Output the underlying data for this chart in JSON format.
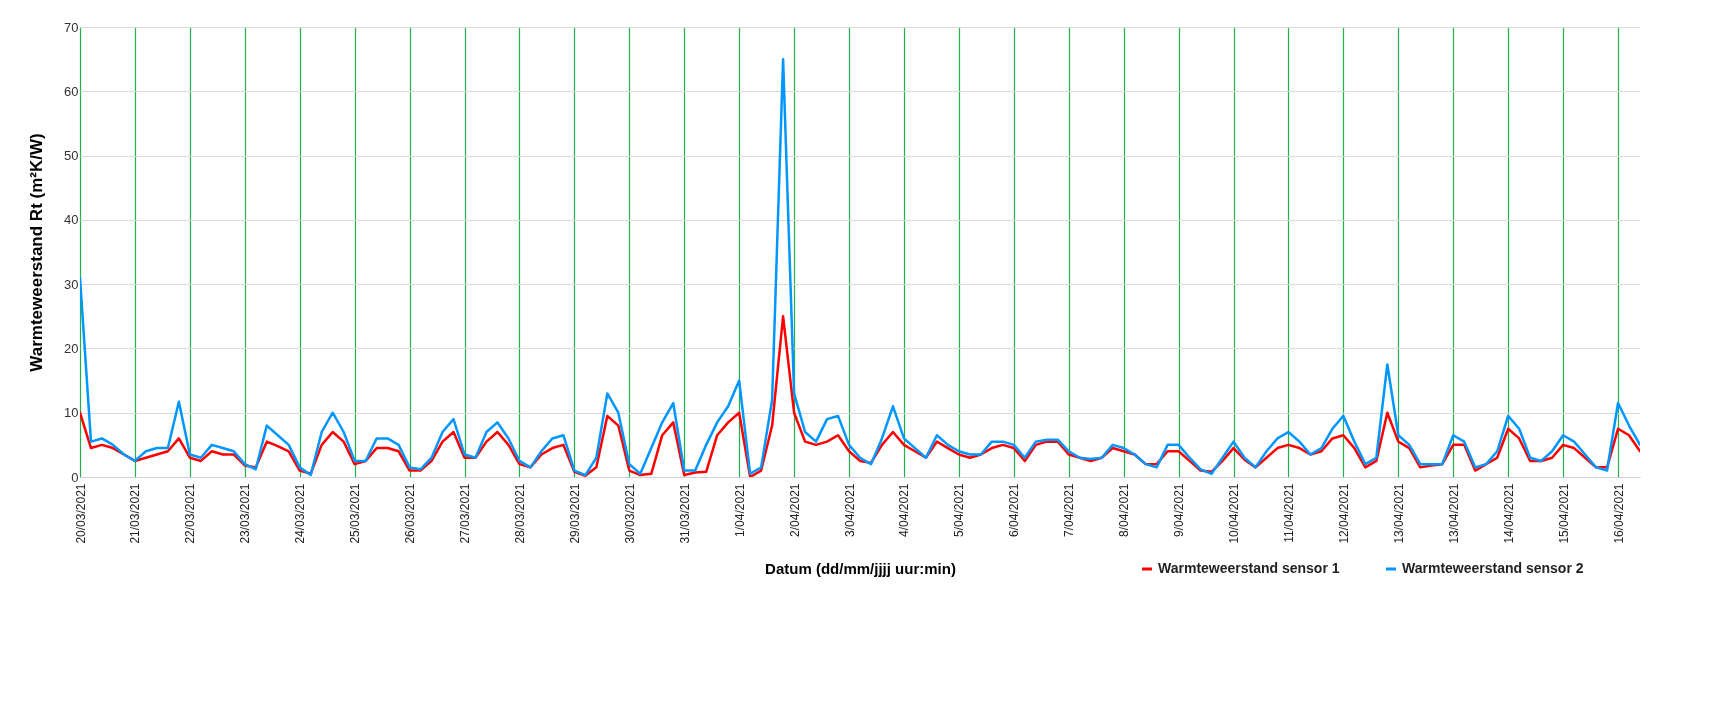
{
  "chart_data": {
    "type": "line",
    "xlabel": "Datum (dd/mm/jjjj uur:min)",
    "ylabel": "Warmteweerstand Rt (m²K/W)",
    "categories": [
      "20/03/2021",
      null,
      null,
      null,
      null,
      "21/03/2021",
      null,
      null,
      null,
      null,
      "22/03/2021",
      null,
      null,
      null,
      null,
      "23/03/2021",
      null,
      null,
      null,
      null,
      "24/03/2021",
      null,
      null,
      null,
      null,
      "25/03/2021",
      null,
      null,
      null,
      null,
      "26/03/2021",
      null,
      null,
      null,
      null,
      "27/03/2021",
      null,
      null,
      null,
      null,
      "28/03/2021",
      null,
      null,
      null,
      null,
      "29/03/2021",
      null,
      null,
      null,
      null,
      "30/03/2021",
      null,
      null,
      null,
      null,
      "31/03/2021",
      null,
      null,
      null,
      null,
      "1/04/2021",
      null,
      null,
      null,
      null,
      "2/04/2021",
      null,
      null,
      null,
      null,
      "3/04/2021",
      null,
      null,
      null,
      null,
      "4/04/2021",
      null,
      null,
      null,
      null,
      "5/04/2021",
      null,
      null,
      null,
      null,
      "6/04/2021",
      null,
      null,
      null,
      null,
      "7/04/2021",
      null,
      null,
      null,
      null,
      "8/04/2021",
      null,
      null,
      null,
      null,
      "9/04/2021",
      null,
      null,
      null,
      null,
      "10/04/2021",
      null,
      null,
      null,
      null,
      "11/04/2021",
      null,
      null,
      null,
      null,
      "12/04/2021",
      null,
      null,
      null,
      null,
      "13/04/2021",
      null,
      null,
      null,
      null,
      "13/04/2021",
      null,
      null,
      null,
      null,
      "14/04/2021",
      null,
      null,
      null,
      null,
      "15/04/2021",
      null,
      null,
      null,
      null,
      "16/04/2021",
      null,
      null
    ],
    "series": [
      {
        "name": "Warmteweerstand sensor 1",
        "color": "#ff0000",
        "values": [
          10,
          4.5,
          5,
          4.5,
          3.5,
          2.5,
          3,
          3.5,
          4,
          6,
          3,
          2.5,
          4,
          3.5,
          3.5,
          1.8,
          1.5,
          5.5,
          4.8,
          4,
          1,
          0.5,
          5,
          7,
          5.5,
          2,
          2.5,
          4.5,
          4.5,
          4,
          1,
          1,
          2.5,
          5.5,
          7,
          3,
          3,
          5.5,
          7,
          5,
          2,
          1.5,
          3.5,
          4.5,
          5,
          0.8,
          0.2,
          1.5,
          9.5,
          8,
          1,
          0.3,
          0.5,
          6.5,
          8.5,
          0.3,
          0.7,
          0.8,
          6.5,
          8.5,
          10,
          0,
          1,
          8,
          25,
          10,
          5.5,
          5,
          5.5,
          6.5,
          4,
          2.5,
          2.2,
          5,
          7,
          5,
          4,
          3,
          5.5,
          4.5,
          3.5,
          3,
          3.5,
          4.5,
          5,
          4.5,
          2.5,
          5,
          5.5,
          5.5,
          3.5,
          3,
          2.5,
          3,
          4.5,
          4,
          3.5,
          2,
          2,
          4,
          4,
          2.5,
          1,
          0.8,
          2.5,
          4.5,
          2.7,
          1.5,
          3,
          4.5,
          5,
          4.5,
          3.5,
          4,
          6,
          6.5,
          4.5,
          1.5,
          2.5,
          10,
          5.5,
          4.5,
          1.5,
          1.8,
          2,
          5,
          5,
          1,
          2,
          3,
          7.5,
          6,
          2.5,
          2.5,
          3,
          5,
          4.5,
          3,
          1.5,
          1.5,
          7.5,
          6.5,
          4
        ]
      },
      {
        "name": "Warmteweerstand sensor 2",
        "color": "#0096ff",
        "values": [
          31,
          5.5,
          6,
          5,
          3.5,
          2.5,
          4,
          4.5,
          4.5,
          11.7,
          3.5,
          3,
          5,
          4.5,
          4,
          2,
          1.2,
          8,
          6.5,
          5,
          1.5,
          0.3,
          7,
          10,
          7,
          2.5,
          2.5,
          6,
          6,
          5,
          1.5,
          1.2,
          3,
          7,
          9,
          3.5,
          3,
          7,
          8.5,
          6,
          2.5,
          1.5,
          4,
          6,
          6.5,
          1,
          0.3,
          3,
          13,
          10,
          2,
          0.5,
          4.5,
          8.5,
          11.5,
          1,
          1,
          5,
          8.5,
          11,
          15,
          0.5,
          1.5,
          12,
          65,
          13,
          7,
          5.5,
          9,
          9.5,
          5,
          3,
          2,
          6,
          11,
          6,
          4.5,
          3,
          6.5,
          5,
          4,
          3.5,
          3.5,
          5.5,
          5.5,
          5,
          3,
          5.5,
          5.8,
          5.8,
          4,
          3,
          2.8,
          3,
          5,
          4.5,
          3.5,
          2,
          1.5,
          5,
          5,
          3,
          1.2,
          0.5,
          3,
          5.5,
          3,
          1.5,
          4,
          6,
          7,
          5.5,
          3.5,
          4.5,
          7.5,
          9.5,
          5.5,
          2,
          3,
          17.5,
          6.5,
          5,
          2,
          2,
          2,
          6.5,
          5.5,
          1.5,
          2,
          4,
          9.5,
          7.5,
          3,
          2.5,
          4,
          6.5,
          5.5,
          3.5,
          1.5,
          1,
          11.5,
          8,
          5
        ]
      }
    ],
    "ylim": [
      0,
      70
    ],
    "yticks": [
      0,
      10,
      20,
      30,
      40,
      50,
      60,
      70
    ],
    "grid": true,
    "legend": "bottom right",
    "line_style": "solid"
  }
}
